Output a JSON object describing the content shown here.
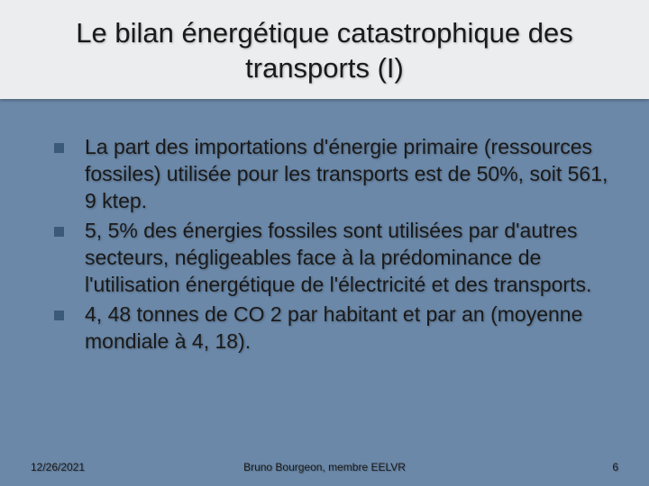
{
  "slide": {
    "title": "Le bilan énergétique catastrophique des transports (I)",
    "title_fontsize": 31,
    "title_bg": "#ecedee",
    "background_color": "#6b88a8",
    "bullet_color": "#3b5a7a",
    "text_color": "#1a1a1a",
    "body_fontsize": 23,
    "bullets": [
      "La part des importations d'énergie primaire (ressources fossiles) utilisée pour les transports est de 50%, soit 561, 9 ktep.",
      "5, 5% des énergies fossiles sont utilisées par d'autres secteurs, négligeables face à la prédominance de l'utilisation énergétique de l'électricité et des transports.",
      "4, 48 tonnes de CO 2 par habitant et par an (moyenne mondiale à 4, 18)."
    ],
    "footer": {
      "date": "12/26/2021",
      "author": "Bruno Bourgeon, membre EELVR",
      "page": "6"
    }
  }
}
